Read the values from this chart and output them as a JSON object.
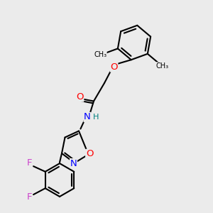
{
  "background_color": "#ebebeb",
  "bond_color": "#000000",
  "bond_width": 1.5,
  "figsize": [
    3.0,
    3.0
  ],
  "dpi": 100,
  "atom_colors": {
    "O": "#ff0000",
    "N": "#0000ff",
    "F": "#cc44cc",
    "C": "#000000",
    "H": "#008080"
  },
  "font_size": 9.5
}
